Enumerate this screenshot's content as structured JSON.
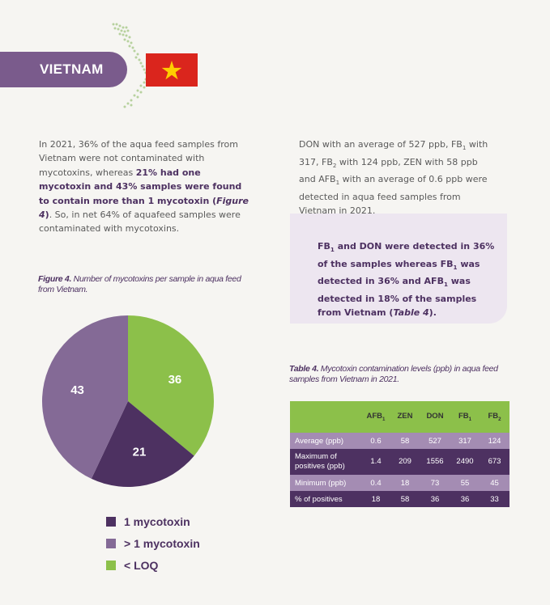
{
  "country": {
    "name": "VIETNAM"
  },
  "intro": {
    "p1": "In 2021, 36% of the aqua feed samples from Vietnam were not contaminated with mycotoxins, whereas ",
    "b1": "21% had one mycotoxin and 43% samples were found to contain more than 1 mycotoxin (",
    "b_fig": "Figure 4",
    "b2": ")",
    "p2": ". So, in net 64% of aquafeed samples were contaminated with mycotoxins."
  },
  "right": {
    "s1": "DON with an average of 527 ppb, FB",
    "sub1": "1",
    "s2": " with 317, FB",
    "sub2": "2",
    "s3": " with 124 ppb, ZEN with 58 ppb and AFB",
    "sub3": "1",
    "s4": " with an average of 0.6 ppb were detected in aqua feed samples from Vietnam in 2021."
  },
  "highlight": {
    "s1": "FB",
    "sub1": "1",
    "s2": " and DON were detected in 36% of the samples whereas FB",
    "sub2": "1",
    "s3": " was detected in 36% and AFB",
    "sub3": "1",
    "s4": " was detected in 18% of the samples from Vietnam (",
    "tab": "Table 4",
    "s5": ")."
  },
  "figure": {
    "label": "Figure 4.",
    "text": " Number of mycotoxins per sample in aqua feed from Vietnam."
  },
  "table": {
    "label": "Table 4.",
    "text": " Mycotoxin contamination levels (ppb) in aqua feed samples from Vietnam in 2021.",
    "headers": [
      {
        "main": "AFB",
        "sub": "1"
      },
      {
        "main": "ZEN",
        "sub": ""
      },
      {
        "main": "DON",
        "sub": ""
      },
      {
        "main": "FB",
        "sub": "1"
      },
      {
        "main": "FB",
        "sub": "2"
      }
    ],
    "rows": [
      {
        "label": "Average (ppb)",
        "values": [
          "0.6",
          "58",
          "527",
          "317",
          "124"
        ]
      },
      {
        "label": "Maximum of positives (ppb)",
        "values": [
          "1.4",
          "209",
          "1556",
          "2490",
          "673"
        ]
      },
      {
        "label": "Minimum (ppb)",
        "values": [
          "0.4",
          "18",
          "73",
          "55",
          "45"
        ]
      },
      {
        "label": "% of positives",
        "values": [
          "18",
          "58",
          "36",
          "36",
          "33"
        ]
      }
    ]
  },
  "chart_data": {
    "type": "pie",
    "title": "Number of mycotoxins per sample in aqua feed from Vietnam.",
    "slices": [
      {
        "label": "< LOQ",
        "value": 36,
        "color": "#8cc04a"
      },
      {
        "label": "1 mycotoxin",
        "value": 21,
        "color": "#4d3161"
      },
      {
        "label": "> 1 mycotoxin",
        "value": 43,
        "color": "#846a96"
      }
    ],
    "legend": [
      "1 mycotoxin",
      "> 1 mycotoxin",
      "< LOQ"
    ],
    "legend_colors": [
      "#4d3161",
      "#846a96",
      "#8cc04a"
    ],
    "legend_placement": "bottom"
  },
  "colors": {
    "purple_dark": "#4d3161",
    "purple_mid": "#846a96",
    "green": "#8cc04a",
    "flag_red": "#da251d",
    "flag_star": "#ffcd00"
  },
  "icons": {
    "map": "vietnam-map-dots",
    "flag": "vietnam-flag"
  }
}
